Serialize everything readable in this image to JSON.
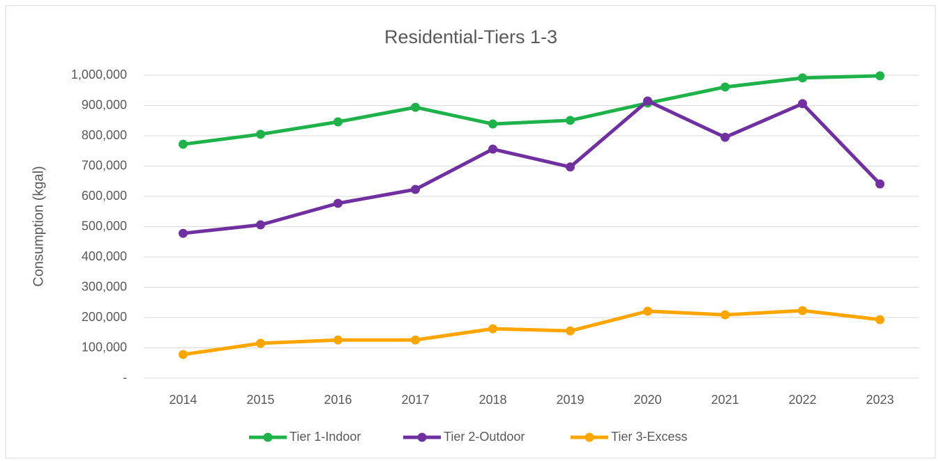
{
  "chart_data": {
    "type": "line",
    "title": "Residential-Tiers 1-3",
    "y_label": "Consumption (kgal)",
    "categories": [
      "2014",
      "2015",
      "2016",
      "2017",
      "2018",
      "2019",
      "2020",
      "2021",
      "2022",
      "2023"
    ],
    "series": [
      {
        "name": "Tier 1-Indoor",
        "color": "#1fb24a",
        "values": [
          772000,
          805000,
          846000,
          894000,
          839000,
          851000,
          908000,
          961000,
          991000,
          998000
        ]
      },
      {
        "name": "Tier 2-Outdoor",
        "color": "#7030a0",
        "values": [
          478000,
          506000,
          577000,
          623000,
          756000,
          697000,
          915000,
          795000,
          906000,
          641000
        ]
      },
      {
        "name": "Tier 3-Excess",
        "color": "#ffa500",
        "values": [
          78000,
          115000,
          126000,
          126000,
          163000,
          156000,
          221000,
          209000,
          223000,
          193000
        ]
      }
    ],
    "ylim": [
      0,
      1000000
    ],
    "yticks": [
      {
        "value": 0,
        "label": "-"
      },
      {
        "value": 100000,
        "label": "100,000"
      },
      {
        "value": 200000,
        "label": "200,000"
      },
      {
        "value": 300000,
        "label": "300,000"
      },
      {
        "value": 400000,
        "label": "400,000"
      },
      {
        "value": 500000,
        "label": "500,000"
      },
      {
        "value": 600000,
        "label": "600,000"
      },
      {
        "value": 700000,
        "label": "700,000"
      },
      {
        "value": 800000,
        "label": "800,000"
      },
      {
        "value": 900000,
        "label": "900,000"
      },
      {
        "value": 1000000,
        "label": "1,000,000"
      }
    ],
    "grid": true,
    "legend": "bottom"
  }
}
